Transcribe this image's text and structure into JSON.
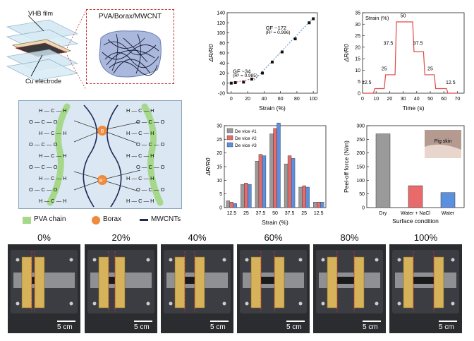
{
  "schematic": {
    "vhb_label": "VHB film",
    "cu_label": "Cu electrode",
    "inset_title": "PVA/Borax/MWCNT"
  },
  "molecule": {
    "atoms": [
      "H",
      "C",
      "H",
      "O",
      "O",
      "C",
      "H",
      "C",
      "H",
      "O",
      "O",
      "C",
      "H",
      "C",
      "H",
      "O",
      "O",
      "C",
      "H",
      "C",
      "H"
    ],
    "boron_label": "B",
    "boron_minus_label": "B⁻",
    "legend": [
      {
        "label": "PVA chain",
        "color": "#a6d88c"
      },
      {
        "label": "Borax",
        "color": "#f08a3c"
      },
      {
        "label": "MWCNTs",
        "color": "#1f2a5a"
      }
    ]
  },
  "chart_data": [
    {
      "type": "scatter",
      "title": "",
      "xlabel": "Strain (%)",
      "ylabel": "ΔR/R0",
      "xlim": [
        -5,
        105
      ],
      "ylim": [
        -20,
        140
      ],
      "xticks": [
        0,
        20,
        40,
        60,
        80,
        100
      ],
      "yticks": [
        -20,
        0,
        20,
        40,
        60,
        80,
        100,
        120,
        140
      ],
      "x": [
        0,
        5,
        15,
        25,
        38,
        50,
        62,
        78,
        95,
        100
      ],
      "y": [
        0,
        1,
        2,
        8,
        20,
        42,
        62,
        88,
        120,
        128
      ],
      "annotations": [
        {
          "text": "GF ~34",
          "sub": "(R² = 0.985)"
        },
        {
          "text": "GF ~172",
          "sub": "(R² = 0.996)"
        }
      ]
    },
    {
      "type": "line",
      "title": "Strain (%)",
      "xlabel": "Time (s)",
      "ylabel": "ΔR/R0",
      "xlim": [
        0,
        75
      ],
      "ylim": [
        0,
        35
      ],
      "xticks": [
        0,
        10,
        20,
        30,
        40,
        50,
        60,
        70
      ],
      "yticks": [
        0,
        5,
        10,
        15,
        20,
        25,
        30,
        35
      ],
      "x": [
        0,
        8,
        9,
        16,
        17,
        24,
        25,
        37,
        38,
        45,
        46,
        53,
        54,
        62,
        63,
        70
      ],
      "y": [
        0,
        0,
        2,
        2,
        8,
        8,
        31,
        31,
        18,
        18,
        8,
        8,
        2,
        2,
        0,
        0
      ],
      "step_labels": [
        "12.5",
        "25",
        "37.5",
        "50",
        "37.5",
        "25",
        "12.5"
      ]
    },
    {
      "type": "bar",
      "xlabel": "Strain (%)",
      "ylabel": "ΔR/R0",
      "categories": [
        "12.5",
        "25",
        "37.5",
        "50",
        "37.5",
        "25",
        "12.5"
      ],
      "ylim": [
        0,
        30
      ],
      "yticks": [
        0,
        5,
        10,
        15,
        20,
        25,
        30
      ],
      "series": [
        {
          "name": "De vice #1",
          "color": "#9a9a9a",
          "values": [
            2.5,
            8.5,
            17,
            27,
            16,
            7.5,
            2
          ]
        },
        {
          "name": "De vice #2",
          "color": "#e86a6a",
          "values": [
            2,
            9,
            19.5,
            29,
            19,
            8,
            2
          ]
        },
        {
          "name": "De vice #3",
          "color": "#5b8fe0",
          "values": [
            1.5,
            8.5,
            19,
            31,
            18,
            7.5,
            2
          ]
        }
      ]
    },
    {
      "type": "bar",
      "xlabel": "Surface condition",
      "ylabel": "Peel-off force (N/m)",
      "categories": [
        "Dry",
        "Water + NaCl",
        "Water"
      ],
      "values": [
        270,
        80,
        55
      ],
      "colors": [
        "#9a9a9a",
        "#e86a6a",
        "#5b8fe0"
      ],
      "ylim": [
        0,
        300
      ],
      "yticks": [
        0,
        50,
        100,
        150,
        200,
        250,
        300
      ],
      "inset_label": "Pig skin"
    }
  ],
  "photos": {
    "strains": [
      "0%",
      "20%",
      "40%",
      "60%",
      "80%",
      "100%"
    ],
    "scale_label": "5 cm"
  }
}
